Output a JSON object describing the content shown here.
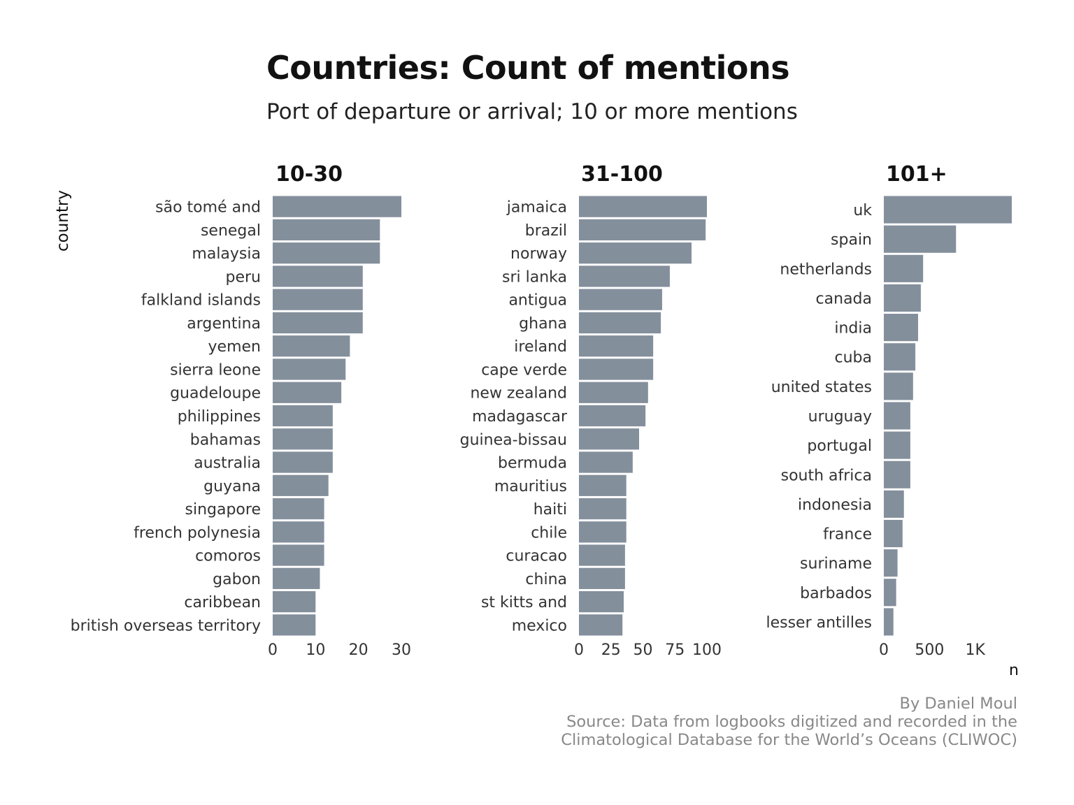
{
  "title": "Countries: Count of mentions",
  "subtitle": "Port of departure or arrival; 10 or more mentions",
  "colors": {
    "bar": "#848f9c",
    "text": "#333333",
    "axis_text": "#333333",
    "caption": "#888888"
  },
  "chart_data": [
    {
      "type": "bar",
      "orientation": "horizontal",
      "title": "10-30",
      "xlabel": "n",
      "ylabel": "country",
      "xlim": [
        0,
        30
      ],
      "xticks": [
        {
          "value": 0,
          "label": "0"
        },
        {
          "value": 10,
          "label": "10"
        },
        {
          "value": 20,
          "label": "20"
        },
        {
          "value": 30,
          "label": "30"
        }
      ],
      "categories": [
        "são tomé and",
        "senegal",
        "malaysia",
        "peru",
        "falkland islands",
        "argentina",
        "yemen",
        "sierra leone",
        "guadeloupe",
        "philippines",
        "bahamas",
        "australia",
        "guyana",
        "singapore",
        "french polynesia",
        "comoros",
        "gabon",
        "caribbean",
        "british overseas territory"
      ],
      "values": [
        30,
        25,
        25,
        21,
        21,
        21,
        18,
        17,
        16,
        14,
        14,
        14,
        13,
        12,
        12,
        12,
        11,
        10,
        10
      ]
    },
    {
      "type": "bar",
      "orientation": "horizontal",
      "title": "31-100",
      "xlabel": "n",
      "ylabel": "country",
      "xlim": [
        0,
        100
      ],
      "xticks": [
        {
          "value": 0,
          "label": "0"
        },
        {
          "value": 25,
          "label": "25"
        },
        {
          "value": 50,
          "label": "50"
        },
        {
          "value": 75,
          "label": "75"
        },
        {
          "value": 100,
          "label": "100"
        }
      ],
      "categories": [
        "jamaica",
        "brazil",
        "norway",
        "sri lanka",
        "antigua",
        "ghana",
        "ireland",
        "cape verde",
        "new zealand",
        "madagascar",
        "guinea-bissau",
        "bermuda",
        "mauritius",
        "haiti",
        "chile",
        "curacao",
        "china",
        "st kitts and",
        "mexico"
      ],
      "values": [
        100,
        99,
        88,
        71,
        65,
        64,
        58,
        58,
        54,
        52,
        47,
        42,
        37,
        37,
        37,
        36,
        36,
        35,
        34
      ]
    },
    {
      "type": "bar",
      "orientation": "horizontal",
      "title": "101+",
      "xlabel": "n",
      "ylabel": "country",
      "xlim": [
        0,
        1400
      ],
      "xticks": [
        {
          "value": 0,
          "label": "0"
        },
        {
          "value": 500,
          "label": "500"
        },
        {
          "value": 1000,
          "label": "1K"
        }
      ],
      "categories": [
        "uk",
        "spain",
        "netherlands",
        "canada",
        "india",
        "cuba",
        "united states",
        "uruguay",
        "portugal",
        "south africa",
        "indonesia",
        "france",
        "suriname",
        "barbados",
        "lesser antilles"
      ],
      "values": [
        1400,
        790,
        430,
        405,
        375,
        345,
        320,
        290,
        290,
        290,
        220,
        205,
        150,
        135,
        105
      ]
    }
  ],
  "axis": {
    "ylabel": "country",
    "xlabel": "n"
  },
  "caption": [
    "By Daniel Moul",
    "Source: Data from logbooks digitized and recorded in the",
    "Climatological Database for the World’s Oceans (CLIWOC)"
  ]
}
